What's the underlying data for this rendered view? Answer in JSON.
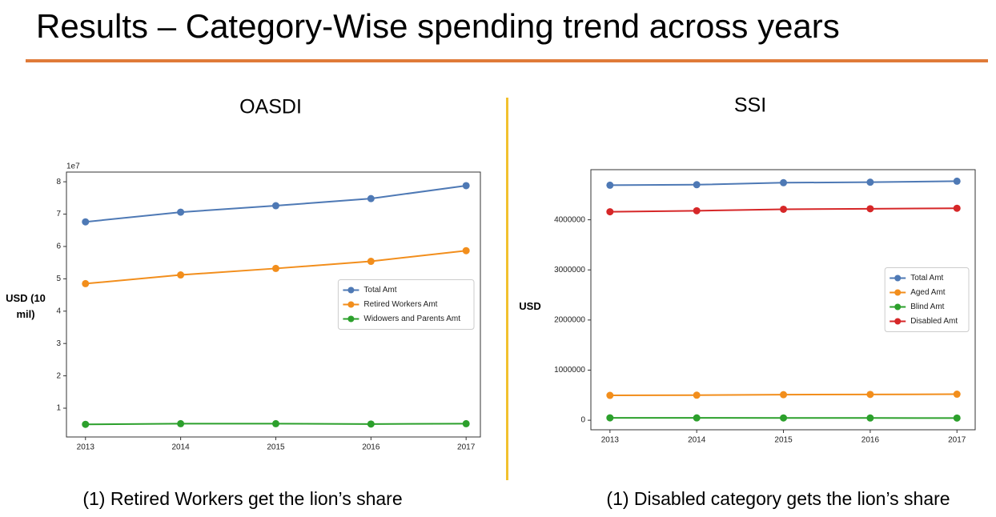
{
  "title": "Results – Category-Wise spending trend across years",
  "chart_data": [
    {
      "type": "line",
      "title": "OASDI",
      "caption": "(1) Retired Workers get the lion’s share",
      "ylabel": "USD (10 mil)",
      "y_offset_text": "1e7",
      "x": [
        2013,
        2014,
        2015,
        2016,
        2017
      ],
      "xlim": [
        2012.8,
        2017.15
      ],
      "xticks": [
        2013,
        2014,
        2015,
        2016,
        2017
      ],
      "ylim": [
        0.11,
        8.3
      ],
      "yticks": [
        1,
        2,
        3,
        4,
        5,
        6,
        7,
        8
      ],
      "legend": "center right",
      "grid": false,
      "series": [
        {
          "name": "Total Amt",
          "color": "#4e79b5",
          "values": [
            6.76,
            7.06,
            7.26,
            7.48,
            7.88
          ]
        },
        {
          "name": "Retired Workers Amt",
          "color": "#f28e1c",
          "values": [
            4.85,
            5.12,
            5.32,
            5.54,
            5.87
          ]
        },
        {
          "name": "Widowers and Parents Amt",
          "color": "#2ca02c",
          "values": [
            0.5,
            0.52,
            0.52,
            0.51,
            0.52
          ]
        }
      ]
    },
    {
      "type": "line",
      "title": "SSI",
      "caption": "(1) Disabled category gets the lion’s share",
      "ylabel": "USD",
      "x": [
        2013,
        2014,
        2015,
        2016,
        2017
      ],
      "xlim": [
        2012.78,
        2017.21
      ],
      "xticks": [
        2013,
        2014,
        2015,
        2016,
        2017
      ],
      "ylim": [
        -190000,
        5000000
      ],
      "yticks": [
        0,
        1000000,
        2000000,
        3000000,
        4000000
      ],
      "legend": "center right",
      "grid": false,
      "series": [
        {
          "name": "Total Amt",
          "color": "#4e79b5",
          "values": [
            4690000,
            4700000,
            4740000,
            4750000,
            4770000
          ]
        },
        {
          "name": "Aged Amt",
          "color": "#f28e1c",
          "values": [
            496000,
            500000,
            510000,
            515000,
            520000
          ]
        },
        {
          "name": "Blind Amt",
          "color": "#2ca02c",
          "values": [
            48000,
            47000,
            46000,
            45000,
            44000
          ]
        },
        {
          "name": "Disabled Amt",
          "color": "#d62728",
          "values": [
            4160000,
            4180000,
            4210000,
            4220000,
            4230000
          ]
        }
      ]
    }
  ]
}
